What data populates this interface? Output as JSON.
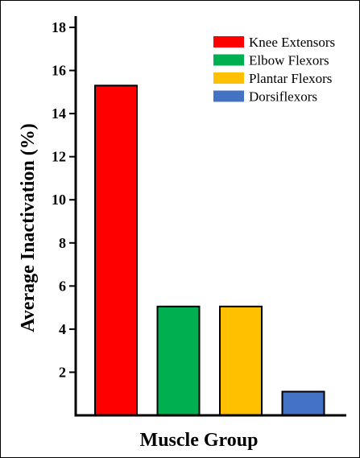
{
  "chart_data": {
    "type": "bar",
    "title": "",
    "xlabel": "Muscle Group",
    "ylabel": "Average Inactivation (%)",
    "ylim": [
      0,
      18
    ],
    "yticks": [
      2,
      4,
      6,
      8,
      10,
      12,
      14,
      16,
      18
    ],
    "categories": [
      "Knee Extensors",
      "Elbow Flexors",
      "Plantar Flexors",
      "Dorsiflexors"
    ],
    "values": [
      15.3,
      5.05,
      5.05,
      1.1
    ],
    "colors": [
      "#ff0000",
      "#00b050",
      "#ffc000",
      "#4472c4"
    ],
    "legend": {
      "placement": "top-right",
      "entries": [
        "Knee Extensors",
        "Elbow Flexors",
        "Plantar Flexors",
        "Dorsiflexors"
      ]
    },
    "grid": false
  }
}
